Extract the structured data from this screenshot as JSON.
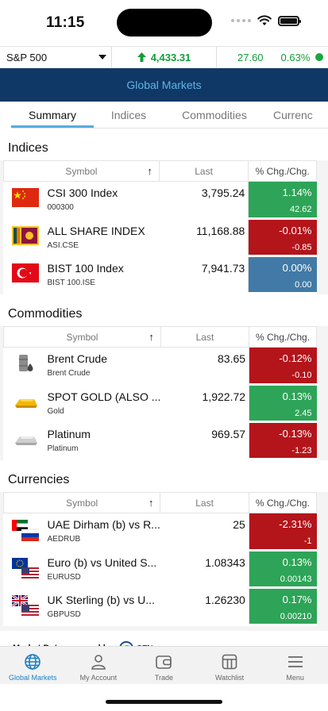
{
  "status": {
    "time": "11:15"
  },
  "ticker": {
    "index": "S&P 500",
    "value": "4,433.31",
    "change": "27.60",
    "change_pct": "0.63%"
  },
  "header": {
    "title": "Global Markets"
  },
  "tabs": [
    "Summary",
    "Indices",
    "Commodities",
    "Currenc"
  ],
  "table_headers": {
    "symbol": "Symbol",
    "last": "Last",
    "chg": "% Chg./Chg."
  },
  "sections": {
    "indices": {
      "title": "Indices",
      "rows": [
        {
          "name": "CSI 300 Index",
          "code": "000300",
          "last": "3,795.24",
          "pct": "1.14%",
          "chg": "42.62",
          "dir": "pos",
          "icon": "china-flag-icon"
        },
        {
          "name": "ALL SHARE INDEX",
          "code": "ASI.CSE",
          "last": "11,168.88",
          "pct": "-0.01%",
          "chg": "-0.85",
          "dir": "neg",
          "icon": "sri-lanka-flag-icon"
        },
        {
          "name": "BIST 100 Index",
          "code": "BIST 100.ISE",
          "last": "7,941.73",
          "pct": "0.00%",
          "chg": "0.00",
          "dir": "flat",
          "icon": "turkey-flag-icon"
        }
      ]
    },
    "commodities": {
      "title": "Commodities",
      "rows": [
        {
          "name": "Brent Crude",
          "code": "Brent Crude",
          "last": "83.65",
          "pct": "-0.12%",
          "chg": "-0.10",
          "dir": "neg",
          "icon": "oil-barrel-icon"
        },
        {
          "name": "SPOT GOLD (ALSO ...",
          "code": "Gold",
          "last": "1,922.72",
          "pct": "0.13%",
          "chg": "2.45",
          "dir": "pos",
          "icon": "gold-bar-icon"
        },
        {
          "name": "Platinum",
          "code": "Platinum",
          "last": "969.57",
          "pct": "-0.13%",
          "chg": "-1.23",
          "dir": "neg",
          "icon": "platinum-bar-icon"
        }
      ]
    },
    "currencies": {
      "title": "Currencies",
      "rows": [
        {
          "name": "UAE Dirham (b) vs R...",
          "code": "AEDRUB",
          "last": "25",
          "pct": "-2.31%",
          "chg": "-1",
          "dir": "neg",
          "icon": "uae-russia-flags-icon"
        },
        {
          "name": "Euro (b) vs United S...",
          "code": "EURUSD",
          "last": "1.08343",
          "pct": "0.13%",
          "chg": "0.00143",
          "dir": "pos",
          "icon": "eu-us-flags-icon"
        },
        {
          "name": "UK Sterling (b) vs U...",
          "code": "GBPUSD",
          "last": "1.26230",
          "pct": "0.17%",
          "chg": "0.00210",
          "dir": "pos",
          "icon": "uk-us-flags-icon"
        }
      ]
    }
  },
  "footer": {
    "powered_by": "Market Data powered by",
    "logo_text": "GTN"
  },
  "nav": [
    {
      "label": "Global Markets",
      "icon": "globe-icon",
      "active": true
    },
    {
      "label": "My Account",
      "icon": "person-icon",
      "active": false
    },
    {
      "label": "Trade",
      "icon": "wallet-icon",
      "active": false
    },
    {
      "label": "Watchlist",
      "icon": "grid-icon",
      "active": false
    },
    {
      "label": "Menu",
      "icon": "hamburger-icon",
      "active": false
    }
  ],
  "colors": {
    "header_bg": "#0f3867",
    "header_text": "#5fb4e4",
    "positive": "#2ea458",
    "negative": "#b3151b",
    "neutral": "#417aa6",
    "accent": "#1d7fc5"
  }
}
